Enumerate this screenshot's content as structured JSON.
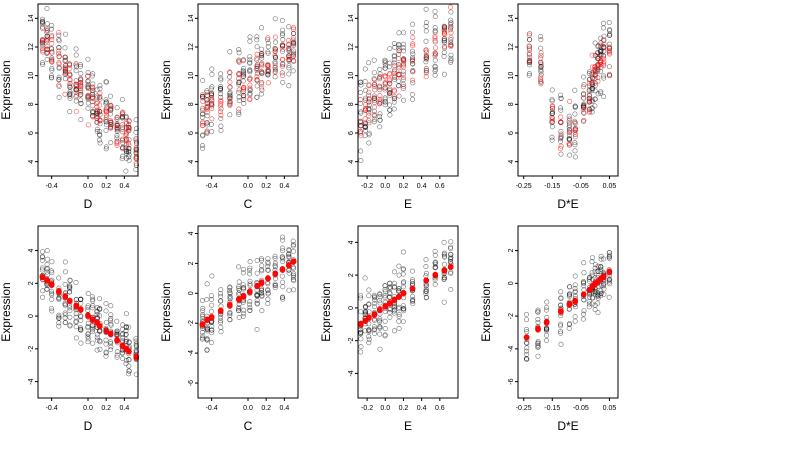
{
  "figure": {
    "background": "#ffffff"
  },
  "colors": {
    "observed": "#000000",
    "partial": "#ff0000"
  },
  "chart_data": [
    {
      "type": "scatter",
      "row": "top",
      "xlabel": "D",
      "ylabel": "Expression",
      "xlim": [
        -0.55,
        0.55
      ],
      "ylim": [
        3,
        15
      ],
      "xticks": [
        -0.4,
        0.0,
        0.2,
        0.4
      ],
      "xtick_labels": [
        "-0.4",
        "0.0",
        "0.2",
        "0.4"
      ],
      "yticks": [
        4,
        6,
        8,
        10,
        12,
        14
      ],
      "ytick_labels": [
        "4",
        "6",
        "8",
        "10",
        "12",
        "14"
      ],
      "x_groups": [
        -0.5,
        -0.45,
        -0.4,
        -0.32,
        -0.25,
        -0.2,
        -0.13,
        -0.08,
        0.0,
        0.05,
        0.1,
        0.13,
        0.2,
        0.25,
        0.32,
        0.38,
        0.42,
        0.45,
        0.53
      ],
      "y_trend": [
        12.6,
        12.2,
        11.6,
        10.9,
        10.4,
        10.0,
        9.5,
        9.2,
        8.6,
        8.3,
        8.0,
        7.8,
        7.3,
        7.0,
        6.5,
        6.0,
        5.8,
        5.6,
        5.1
      ],
      "spread": 2.0
    },
    {
      "type": "scatter",
      "row": "top",
      "xlabel": "C",
      "ylabel": "Expression",
      "xlim": [
        -0.55,
        0.55
      ],
      "ylim": [
        3,
        15
      ],
      "xticks": [
        -0.4,
        0.0,
        0.2,
        0.4
      ],
      "xtick_labels": [
        "-0.4",
        "0.0",
        "0.2",
        "0.4"
      ],
      "yticks": [
        4,
        6,
        8,
        10,
        12,
        14
      ],
      "ytick_labels": [
        "4",
        "6",
        "8",
        "10",
        "12",
        "14"
      ],
      "x_groups": [
        -0.5,
        -0.45,
        -0.4,
        -0.3,
        -0.2,
        -0.1,
        -0.05,
        0.02,
        0.1,
        0.15,
        0.22,
        0.3,
        0.38,
        0.45,
        0.5
      ],
      "y_trend": [
        7.5,
        7.8,
        8.1,
        8.6,
        9.0,
        9.3,
        9.6,
        9.9,
        10.2,
        10.4,
        10.7,
        11.0,
        11.3,
        11.8,
        12.2
      ],
      "spread": 2.2
    },
    {
      "type": "scatter",
      "row": "top",
      "xlabel": "E",
      "ylabel": "Expression",
      "xlim": [
        -0.3,
        0.8
      ],
      "ylim": [
        3,
        15
      ],
      "xticks": [
        -0.2,
        0.0,
        0.2,
        0.4,
        0.6
      ],
      "xtick_labels": [
        "-0.2",
        "0.0",
        "0.2",
        "0.4",
        "0.6"
      ],
      "yticks": [
        4,
        6,
        8,
        10,
        12,
        14
      ],
      "ytick_labels": [
        "4",
        "6",
        "8",
        "10",
        "12",
        "14"
      ],
      "x_groups": [
        -0.27,
        -0.22,
        -0.18,
        -0.12,
        -0.06,
        0.0,
        0.05,
        0.1,
        0.15,
        0.2,
        0.3,
        0.45,
        0.55,
        0.65,
        0.72
      ],
      "y_trend": [
        7.0,
        7.4,
        7.8,
        8.3,
        8.8,
        9.3,
        9.7,
        10.0,
        10.4,
        10.8,
        11.3,
        11.8,
        12.2,
        12.6,
        13.0
      ],
      "spread": 2.3
    },
    {
      "type": "scatter",
      "row": "top",
      "xlabel": "D*E",
      "ylabel": "Expression",
      "xlim": [
        -0.27,
        0.08
      ],
      "ylim": [
        3,
        15
      ],
      "xticks": [
        -0.25,
        -0.15,
        -0.05,
        0.05
      ],
      "xtick_labels": [
        "-0.25",
        "-0.15",
        "-0.05",
        "0.05"
      ],
      "yticks": [
        4,
        6,
        8,
        10,
        12,
        14
      ],
      "ytick_labels": [
        "4",
        "6",
        "8",
        "10",
        "12",
        "14"
      ],
      "x_groups": [
        -0.23,
        -0.19,
        -0.15,
        -0.12,
        -0.09,
        -0.07,
        -0.04,
        -0.02,
        -0.01,
        0.0,
        0.01,
        0.02,
        0.03,
        0.05
      ],
      "y_trend": [
        11.5,
        11.0,
        7.2,
        6.8,
        6.0,
        6.5,
        8.0,
        8.8,
        9.4,
        10.0,
        10.5,
        11.0,
        11.4,
        12.0
      ],
      "spread": 2.0
    },
    {
      "type": "scatter",
      "row": "bottom",
      "xlabel": "D",
      "ylabel": "Expression",
      "xlim": [
        -0.55,
        0.55
      ],
      "ylim": [
        -5,
        5.5
      ],
      "xticks": [
        -0.4,
        0.0,
        0.2,
        0.4
      ],
      "xtick_labels": [
        "-0.4",
        "0.0",
        "0.2",
        "0.4"
      ],
      "yticks": [
        -4,
        -2,
        0,
        2,
        4
      ],
      "ytick_labels": [
        "-4",
        "-2",
        "0",
        "2",
        "4"
      ],
      "x_groups": [
        -0.5,
        -0.45,
        -0.4,
        -0.32,
        -0.25,
        -0.2,
        -0.13,
        -0.08,
        0.0,
        0.05,
        0.1,
        0.13,
        0.2,
        0.25,
        0.32,
        0.38,
        0.42,
        0.45,
        0.53
      ],
      "y_trend": [
        2.4,
        2.2,
        1.9,
        1.5,
        1.2,
        0.9,
        0.6,
        0.4,
        0.0,
        -0.2,
        -0.4,
        -0.6,
        -0.9,
        -1.1,
        -1.5,
        -1.8,
        -2.0,
        -2.2,
        -2.5
      ],
      "spread": 1.6
    },
    {
      "type": "scatter",
      "row": "bottom",
      "xlabel": "C",
      "ylabel": "Expression",
      "xlim": [
        -0.55,
        0.55
      ],
      "ylim": [
        -7,
        4.5
      ],
      "xticks": [
        -0.4,
        0.0,
        0.2,
        0.4
      ],
      "xtick_labels": [
        "-0.4",
        "0.0",
        "0.2",
        "0.4"
      ],
      "yticks": [
        -6,
        -4,
        -2,
        0,
        2,
        4
      ],
      "ytick_labels": [
        "-6",
        "-4",
        "-2",
        "0",
        "2",
        "4"
      ],
      "x_groups": [
        -0.5,
        -0.45,
        -0.4,
        -0.3,
        -0.2,
        -0.1,
        -0.05,
        0.02,
        0.1,
        0.15,
        0.22,
        0.3,
        0.38,
        0.45,
        0.5
      ],
      "y_trend": [
        -2.1,
        -1.8,
        -1.6,
        -1.2,
        -0.8,
        -0.4,
        -0.2,
        0.1,
        0.5,
        0.7,
        1.0,
        1.3,
        1.6,
        1.9,
        2.1
      ],
      "spread": 1.7
    },
    {
      "type": "scatter",
      "row": "bottom",
      "xlabel": "E",
      "ylabel": "Expression",
      "xlim": [
        -0.3,
        0.8
      ],
      "ylim": [
        -5.5,
        5
      ],
      "xticks": [
        -0.2,
        0.0,
        0.2,
        0.4,
        0.6
      ],
      "xtick_labels": [
        "-0.2",
        "0.0",
        "0.2",
        "0.4",
        "0.6"
      ],
      "yticks": [
        -4,
        -2,
        0,
        2,
        4
      ],
      "ytick_labels": [
        "-4",
        "-2",
        "0",
        "2",
        "4"
      ],
      "x_groups": [
        -0.27,
        -0.22,
        -0.18,
        -0.12,
        -0.06,
        0.0,
        0.05,
        0.1,
        0.15,
        0.2,
        0.3,
        0.45,
        0.55,
        0.65,
        0.72
      ],
      "y_trend": [
        -1.0,
        -0.8,
        -0.6,
        -0.4,
        -0.1,
        0.1,
        0.3,
        0.5,
        0.7,
        0.9,
        1.2,
        1.7,
        2.0,
        2.3,
        2.5
      ],
      "spread": 1.7
    },
    {
      "type": "scatter",
      "row": "bottom",
      "xlabel": "D*E",
      "ylabel": "Expression",
      "xlim": [
        -0.27,
        0.08
      ],
      "ylim": [
        -7,
        3.5
      ],
      "xticks": [
        -0.25,
        -0.15,
        -0.05,
        0.05
      ],
      "xtick_labels": [
        "-0.25",
        "-0.15",
        "-0.05",
        "0.05"
      ],
      "yticks": [
        -6,
        -4,
        -2,
        0,
        2
      ],
      "ytick_labels": [
        "-6",
        "-4",
        "-2",
        "0",
        "2"
      ],
      "x_groups": [
        -0.24,
        -0.2,
        -0.17,
        -0.12,
        -0.09,
        -0.07,
        -0.04,
        -0.02,
        -0.01,
        0.0,
        0.01,
        0.02,
        0.03,
        0.05
      ],
      "y_trend": [
        -3.3,
        -2.8,
        -2.4,
        -1.7,
        -1.3,
        -1.1,
        -0.7,
        -0.4,
        -0.2,
        0.0,
        0.1,
        0.3,
        0.4,
        0.7
      ],
      "spread": 1.5
    }
  ]
}
